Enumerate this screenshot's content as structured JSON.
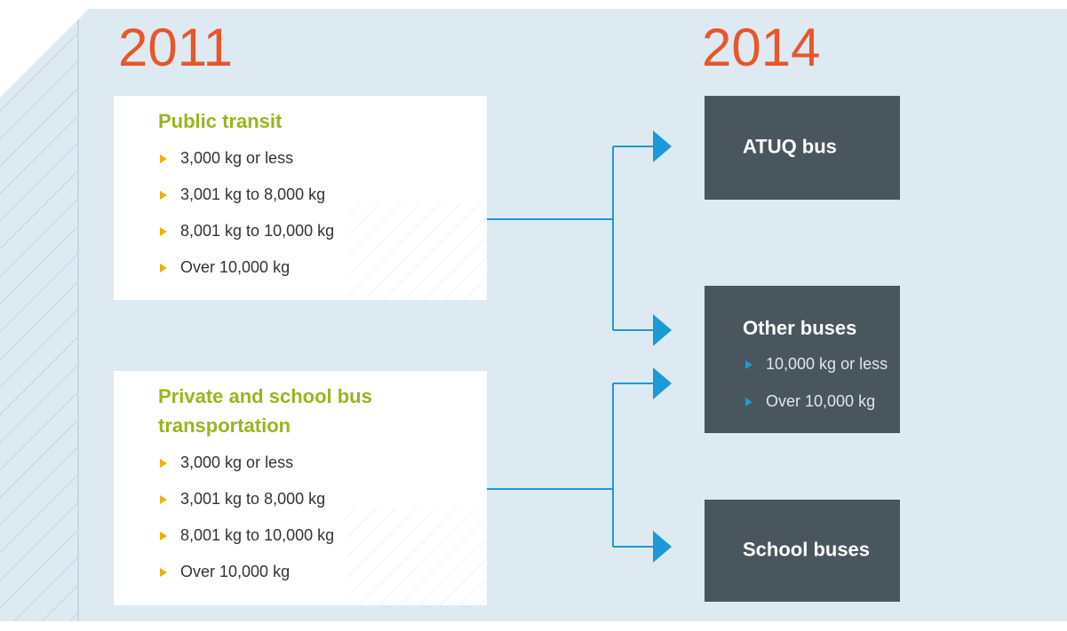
{
  "years": [
    "2011",
    "2014"
  ],
  "left_boxes": [
    {
      "title": [
        "Public transit"
      ],
      "items": [
        "3,000 kg or less",
        "3,001 kg to 8,000 kg",
        "8,001 kg to 10,000 kg",
        "Over 10,000 kg"
      ]
    },
    {
      "title": [
        "Private and school bus",
        "transportation"
      ],
      "items": [
        "3,000 kg or less",
        "3,001 kg to 8,000 kg",
        "8,001 kg to 10,000 kg",
        "Over 10,000 kg"
      ]
    }
  ],
  "right_boxes": [
    {
      "title": "ATUQ bus",
      "items": []
    },
    {
      "title": "Other buses",
      "items": [
        "10,000 kg or less",
        "Over 10,000 kg"
      ]
    },
    {
      "title": "School buses",
      "items": []
    }
  ]
}
